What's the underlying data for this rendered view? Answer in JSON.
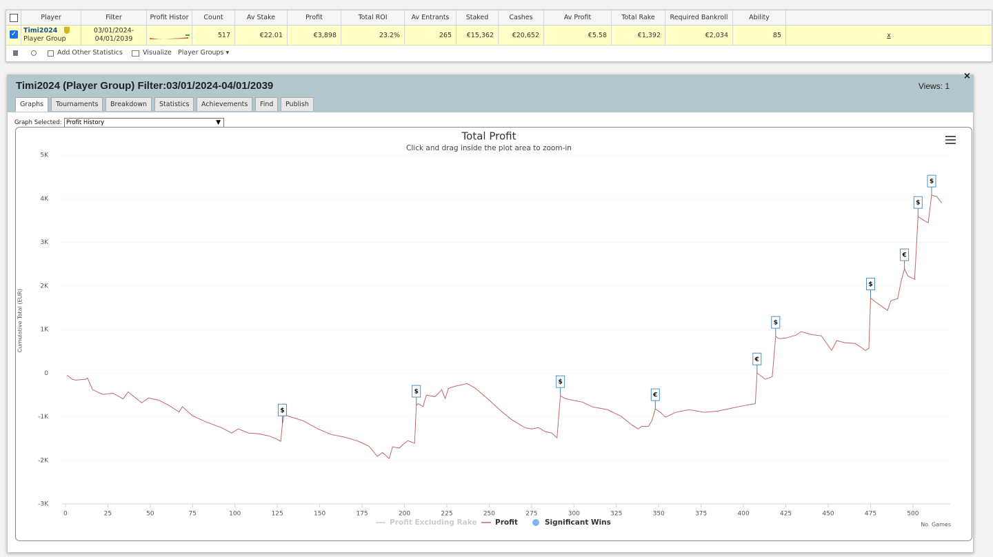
{
  "table": {
    "headers": [
      "Player",
      "Filter",
      "Profit Histor",
      "Count",
      "Av Stake",
      "Profit",
      "Total ROI",
      "Av Entrants",
      "Staked",
      "Cashes",
      "Av Profit",
      "Total Rake",
      "Required Bankroll",
      "Ability"
    ],
    "row": {
      "player": "Timi2024",
      "player_type": "Player Group",
      "filter": [
        "03/01/2024-",
        "04/01/2039"
      ],
      "cells": [
        "517",
        "€22.01",
        "€3,898",
        "23.2%",
        "265",
        "€15,362",
        "€20,652",
        "€5.58",
        "€1,392",
        "€2,034",
        "85"
      ],
      "remove": "x"
    }
  },
  "toolbar": {
    "add": "Add Other Statistics",
    "visualize": "Visualize",
    "groups": "Player Groups ▾"
  },
  "panel": {
    "title": "Timi2024 (Player Group) Filter:03/01/2024-04/01/2039",
    "views": "Views: 1",
    "tabs": [
      "Graphs",
      "Tournaments",
      "Breakdown",
      "Statistics",
      "Achievements",
      "Find",
      "Publish"
    ],
    "graph_label": "Graph Selected:",
    "graph_selected": "Profit History"
  },
  "chart_data": {
    "type": "line",
    "title": "Total Profit",
    "subtitle": "Click and drag inside the plot area to zoom-in",
    "y_label": "Cumulative Total (EUR)",
    "x_label": "No. Games",
    "xlim": [
      -2,
      522
    ],
    "ylim": [
      -3000,
      5000
    ],
    "xticks": [
      0,
      25,
      50,
      75,
      100,
      125,
      150,
      175,
      200,
      225,
      250,
      275,
      300,
      325,
      350,
      375,
      400,
      425,
      450,
      475,
      500
    ],
    "yticks": [
      {
        "value": -3000,
        "label": "-3K"
      },
      {
        "value": -2000,
        "label": "-2K"
      },
      {
        "value": -1000,
        "label": "-1K"
      },
      0,
      {
        "value": 1000,
        "label": "1K"
      },
      {
        "value": 2000,
        "label": "2K"
      },
      {
        "value": 3000,
        "label": "3K"
      },
      {
        "value": 4000,
        "label": "4K"
      },
      {
        "value": 5000,
        "label": "5K"
      }
    ],
    "grid": true,
    "series": [
      {
        "name": "Profit Excluding Rake",
        "color": "#cccccc",
        "visible": false
      },
      {
        "name": "Profit",
        "color": "#c26565",
        "x": [
          1,
          4,
          6,
          12,
          13,
          16,
          22,
          28,
          34,
          37,
          43,
          45,
          49,
          55,
          61,
          67,
          69,
          75,
          83,
          92,
          98,
          102,
          108,
          114,
          120,
          124,
          127,
          128,
          129,
          131,
          140,
          149,
          157,
          165,
          173,
          179,
          184,
          187,
          191,
          193,
          197,
          199,
          202,
          206,
          207,
          208,
          211,
          212,
          213,
          218,
          222,
          224,
          226,
          230,
          237,
          242,
          250,
          257,
          263,
          271,
          275,
          279,
          283,
          287,
          290,
          292,
          295,
          299,
          305,
          311,
          320,
          328,
          334,
          338,
          340,
          344,
          346,
          348,
          351,
          354,
          360,
          368,
          377,
          385,
          393,
          401,
          407,
          408,
          413,
          417,
          419,
          421,
          425,
          431,
          434,
          440,
          446,
          452,
          455,
          460,
          466,
          472,
          474,
          475,
          478,
          485,
          487,
          491,
          493,
          495,
          497,
          501,
          503,
          507,
          509,
          511,
          514,
          517
        ],
        "values": [
          -50,
          -140,
          -160,
          -140,
          -110,
          -380,
          -490,
          -460,
          -590,
          -430,
          -620,
          -680,
          -570,
          -620,
          -740,
          -890,
          -770,
          -980,
          -1120,
          -1250,
          -1375,
          -1280,
          -1375,
          -1390,
          -1440,
          -1500,
          -1565,
          -1170,
          -960,
          -980,
          -1090,
          -1280,
          -1410,
          -1470,
          -1565,
          -1675,
          -1910,
          -1820,
          -1960,
          -1690,
          -1720,
          -1640,
          -1550,
          -1610,
          -740,
          -700,
          -770,
          -620,
          -505,
          -540,
          -380,
          -585,
          -350,
          -300,
          -240,
          -350,
          -620,
          -870,
          -1060,
          -1250,
          -1280,
          -1250,
          -1340,
          -1375,
          -1485,
          -520,
          -585,
          -620,
          -665,
          -775,
          -840,
          -995,
          -1185,
          -1280,
          -1220,
          -1220,
          -1090,
          -820,
          -900,
          -1010,
          -900,
          -840,
          -900,
          -870,
          -805,
          -740,
          -700,
          0,
          -140,
          -80,
          840,
          790,
          805,
          870,
          950,
          885,
          855,
          520,
          745,
          695,
          680,
          520,
          570,
          1720,
          1630,
          1440,
          1660,
          1710,
          2100,
          2390,
          2230,
          2150,
          3590,
          3490,
          3450,
          4080,
          4050,
          3900
        ]
      },
      {
        "name": "Significant Wins",
        "color": "#7cb5ec",
        "x": [
          128,
          207,
          292,
          348,
          408,
          419,
          475,
          495,
          503,
          511
        ],
        "values": [
          -1170,
          -740,
          -520,
          -820,
          0,
          840,
          1720,
          2390,
          3590,
          4080
        ],
        "labels": [
          "$",
          "$",
          "$",
          "€",
          "€",
          "$",
          "$",
          "€",
          "$",
          "$"
        ]
      }
    ]
  }
}
